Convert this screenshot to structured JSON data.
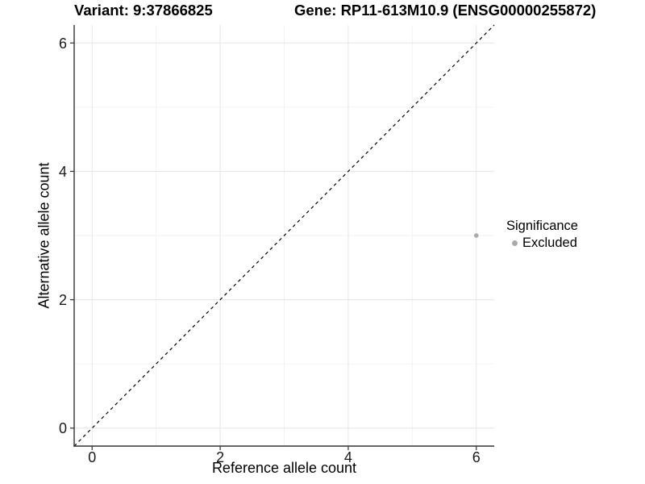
{
  "header": {
    "variant_title": "Variant: 9:37866825",
    "gene_title": "Gene: RP11-613M10.9 (ENSG00000255872)"
  },
  "chart_data": {
    "type": "scatter",
    "title": "Variant: 9:37866825 — Gene: RP11-613M10.9 (ENSG00000255872)",
    "xlabel": "Reference allele count",
    "ylabel": "Alternative allele count",
    "xlim": [
      -0.28,
      6.28
    ],
    "ylim": [
      -0.28,
      6.28
    ],
    "xticks": [
      0,
      2,
      4,
      6
    ],
    "yticks": [
      0,
      2,
      4,
      6
    ],
    "minor_xticks": [
      1,
      3,
      5
    ],
    "minor_yticks": [
      1,
      3,
      5
    ],
    "grid": true,
    "points": [
      {
        "x": 6,
        "y": 3,
        "series": "Excluded"
      }
    ],
    "identity_line": {
      "style": "dashed",
      "slope": 1,
      "intercept": 0
    },
    "legend": {
      "position": "right",
      "title": "Significance",
      "items": [
        {
          "label": "Excluded",
          "color": "#aaaaaa",
          "marker": "circle"
        }
      ]
    },
    "colors": {
      "point": "#aaaaaa",
      "grid_major": "#e8e8e8",
      "grid_minor": "#f2f2f2",
      "axis_line": "#333333",
      "tick_text": "#1a1a1a",
      "title_text": "#000000",
      "reference_line": "#000000",
      "background": "#ffffff"
    }
  }
}
